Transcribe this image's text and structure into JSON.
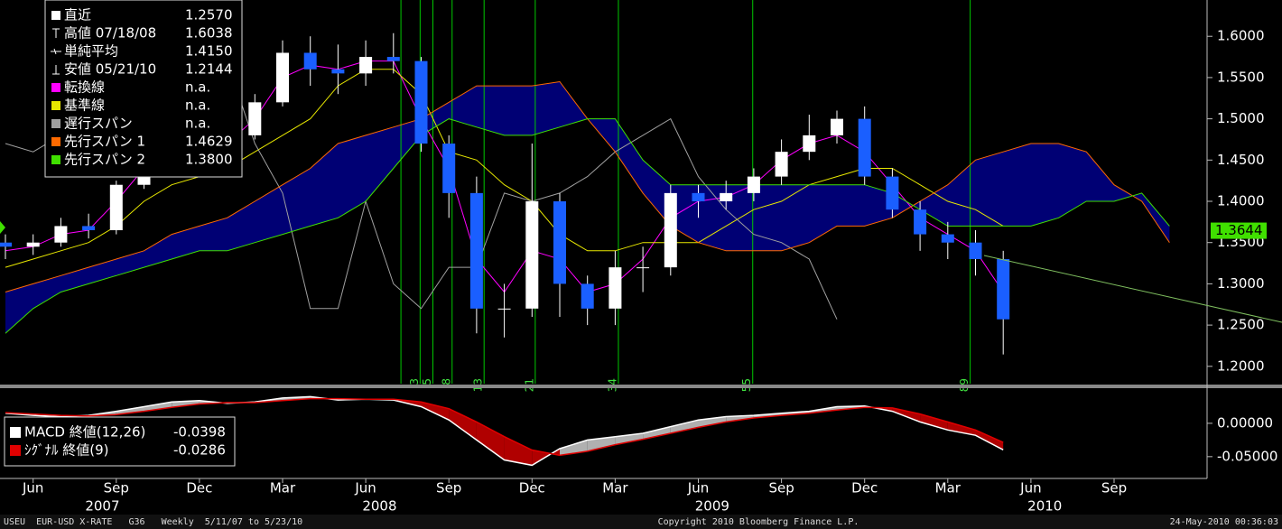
{
  "chart_data": [
    {
      "type": "candlestick",
      "categories": [
        null,
        "Jun",
        null,
        null,
        "Sep",
        null,
        null,
        "Dec",
        null,
        null,
        "Mar",
        null,
        null,
        "Jun",
        null,
        null,
        "Sep",
        null,
        null,
        "Dec",
        null,
        null,
        "Mar",
        null,
        null,
        "Jun",
        null,
        null,
        "Sep",
        null,
        null,
        "Dec",
        null,
        null,
        "Mar",
        null,
        null,
        "Jun",
        null,
        null,
        "Sep",
        null,
        null,
        null
      ],
      "years": [
        "2007",
        "2008",
        "2009",
        "2010"
      ],
      "open": [
        1.35,
        1.345,
        1.35,
        1.37,
        1.365,
        1.42,
        1.45,
        1.47,
        1.46,
        1.48,
        1.52,
        1.58,
        1.56,
        1.555,
        1.575,
        1.57,
        1.47,
        1.41,
        1.27,
        1.27,
        1.4,
        1.3,
        1.27,
        1.32,
        1.32,
        1.41,
        1.4,
        1.41,
        1.43,
        1.46,
        1.48,
        1.5,
        1.43,
        1.39,
        1.36,
        1.35,
        1.33,
        null,
        null,
        null,
        null,
        null,
        null,
        null
      ],
      "high": [
        1.36,
        1.36,
        1.38,
        1.385,
        1.425,
        1.46,
        1.495,
        1.48,
        1.49,
        1.53,
        1.595,
        1.6,
        1.59,
        1.595,
        1.6038,
        1.575,
        1.48,
        1.43,
        1.3,
        1.47,
        1.41,
        1.31,
        1.34,
        1.345,
        1.42,
        1.42,
        1.425,
        1.44,
        1.475,
        1.505,
        1.51,
        1.515,
        1.44,
        1.4,
        1.375,
        1.365,
        1.34,
        null,
        null,
        null,
        null,
        null,
        null,
        null
      ],
      "low": [
        1.33,
        1.335,
        1.345,
        1.355,
        1.36,
        1.415,
        1.44,
        1.44,
        1.445,
        1.475,
        1.515,
        1.54,
        1.53,
        1.54,
        1.555,
        1.46,
        1.38,
        1.24,
        1.235,
        1.26,
        1.26,
        1.25,
        1.25,
        1.29,
        1.31,
        1.38,
        1.39,
        1.4,
        1.42,
        1.45,
        1.47,
        1.42,
        1.38,
        1.34,
        1.33,
        1.31,
        1.2144,
        null,
        null,
        null,
        null,
        null,
        null,
        null
      ],
      "close": [
        1.345,
        1.35,
        1.37,
        1.365,
        1.42,
        1.45,
        1.47,
        1.46,
        1.48,
        1.52,
        1.58,
        1.56,
        1.555,
        1.575,
        1.57,
        1.47,
        1.41,
        1.27,
        1.27,
        1.4,
        1.3,
        1.27,
        1.32,
        1.32,
        1.41,
        1.4,
        1.41,
        1.43,
        1.46,
        1.48,
        1.5,
        1.43,
        1.39,
        1.36,
        1.35,
        1.33,
        1.257,
        null,
        null,
        null,
        null,
        null,
        null,
        null
      ],
      "up_color": "#ffffff",
      "down_color": "#1a5fff",
      "cloud_color": "#00007a",
      "fib_color": "#00c800",
      "stats": [
        {
          "label": "直近",
          "value": {
            "value": 1.257,
            "label": "1.2570"
          }
        },
        {
          "label": "高値 07/18/08",
          "value": 1.6038
        },
        {
          "label": "単純平均",
          "value": {
            "value": 1.415,
            "label": "1.4150"
          }
        },
        {
          "label": "安値 05/21/10",
          "value": 1.2144
        }
      ],
      "series": [
        {
          "name": "転換線",
          "color": "#ff00ff",
          "legend_value": "n.a.",
          "values": [
            1.34,
            1.345,
            1.36,
            1.365,
            1.4,
            1.44,
            1.46,
            1.46,
            1.47,
            1.5,
            1.55,
            1.565,
            1.56,
            1.57,
            1.57,
            1.5,
            1.44,
            1.33,
            1.29,
            1.34,
            1.33,
            1.29,
            1.3,
            1.33,
            1.38,
            1.4,
            1.405,
            1.42,
            1.45,
            1.47,
            1.48,
            1.46,
            1.42,
            1.38,
            1.36,
            1.34,
            1.29,
            null,
            null,
            null,
            null,
            null,
            null,
            null
          ]
        },
        {
          "name": "基準線",
          "color": "#e8e800",
          "legend_value": "n.a.",
          "values": [
            1.32,
            1.33,
            1.34,
            1.35,
            1.37,
            1.4,
            1.42,
            1.43,
            1.44,
            1.46,
            1.48,
            1.5,
            1.54,
            1.56,
            1.56,
            1.53,
            1.46,
            1.45,
            1.42,
            1.4,
            1.36,
            1.34,
            1.34,
            1.35,
            1.35,
            1.35,
            1.37,
            1.39,
            1.4,
            1.42,
            1.43,
            1.44,
            1.44,
            1.42,
            1.4,
            1.39,
            1.37,
            null,
            null,
            null,
            null,
            null,
            null,
            null
          ]
        },
        {
          "name": "遅行スパン",
          "color": "#a0a0a0",
          "legend_value": "n.a.",
          "values": [
            1.47,
            1.46,
            1.48,
            1.52,
            1.58,
            1.56,
            1.555,
            1.575,
            1.57,
            1.47,
            1.41,
            1.27,
            1.27,
            1.4,
            1.3,
            1.27,
            1.32,
            1.32,
            1.41,
            1.4,
            1.41,
            1.43,
            1.46,
            1.48,
            1.5,
            1.43,
            1.39,
            1.36,
            1.35,
            1.33,
            1.257,
            null,
            null,
            null,
            null,
            null,
            null,
            null,
            null,
            null,
            null,
            null,
            null,
            null
          ]
        },
        {
          "name": "先行スパン 1",
          "color": "#ff6a00",
          "legend_value": 1.4629,
          "values": [
            1.29,
            1.3,
            1.31,
            1.32,
            1.33,
            1.34,
            1.36,
            1.37,
            1.38,
            1.4,
            1.42,
            1.44,
            1.47,
            1.48,
            1.49,
            1.5,
            1.52,
            1.54,
            1.54,
            1.54,
            1.545,
            1.5,
            1.46,
            1.41,
            1.37,
            1.35,
            1.34,
            1.34,
            1.34,
            1.35,
            1.37,
            1.37,
            1.38,
            1.4,
            1.42,
            1.45,
            1.46,
            1.47,
            1.47,
            1.46,
            1.42,
            1.4,
            1.35,
            null
          ]
        },
        {
          "name": "先行スパン 2",
          "color": "#40e000",
          "legend_value": {
            "value": 1.38,
            "label": "1.3800"
          },
          "values": [
            1.24,
            1.27,
            1.29,
            1.3,
            1.31,
            1.32,
            1.33,
            1.34,
            1.34,
            1.35,
            1.36,
            1.37,
            1.38,
            1.4,
            1.44,
            1.48,
            1.5,
            1.49,
            1.48,
            1.48,
            1.49,
            1.5,
            1.5,
            1.45,
            1.42,
            1.42,
            1.42,
            1.42,
            1.42,
            1.42,
            1.42,
            1.42,
            1.41,
            1.39,
            1.37,
            1.37,
            1.37,
            1.37,
            1.38,
            1.4,
            1.4,
            1.41,
            1.37,
            null
          ]
        }
      ],
      "fibonacci": [
        3,
        5,
        8,
        13,
        21,
        34,
        55,
        89
      ],
      "last_value": 1.3644,
      "ylim": [
        1.179,
        1.644
      ],
      "yticks": [
        {
          "value": 1.2,
          "label": "1.2000"
        },
        {
          "value": 1.25,
          "label": "1.2500"
        },
        {
          "value": 1.3,
          "label": "1.3000"
        },
        {
          "value": 1.35,
          "label": "1.3500"
        },
        {
          "value": 1.4,
          "label": "1.4000"
        },
        {
          "value": 1.45,
          "label": "1.4500"
        },
        {
          "value": 1.5,
          "label": "1.5000"
        },
        {
          "value": 1.55,
          "label": "1.5500"
        },
        {
          "value": 1.6,
          "label": "1.6000"
        }
      ]
    },
    {
      "type": "line",
      "series": [
        {
          "name": "MACD 終値(12,26)",
          "color": "#ffffff",
          "legend_value": -0.0398,
          "values": [
            0.015,
            0.012,
            0.01,
            0.012,
            0.018,
            0.025,
            0.032,
            0.034,
            0.03,
            0.032,
            0.038,
            0.04,
            0.035,
            0.036,
            0.035,
            0.025,
            0.005,
            -0.025,
            -0.055,
            -0.063,
            -0.038,
            -0.025,
            -0.02,
            -0.015,
            -0.005,
            0.005,
            0.01,
            0.012,
            0.015,
            0.018,
            0.025,
            0.026,
            0.018,
            0.002,
            -0.01,
            -0.018,
            -0.0398,
            null,
            null,
            null,
            null,
            null,
            null,
            null
          ]
        },
        {
          "name": "ｼｸﾞﾅﾙ 終値(9)",
          "color": "#e00000",
          "legend_value": -0.0286,
          "values": [
            0.016,
            0.014,
            0.012,
            0.011,
            0.013,
            0.018,
            0.024,
            0.029,
            0.031,
            0.031,
            0.034,
            0.037,
            0.037,
            0.036,
            0.036,
            0.032,
            0.022,
            0.002,
            -0.02,
            -0.04,
            -0.048,
            -0.042,
            -0.032,
            -0.024,
            -0.015,
            -0.006,
            0.002,
            0.008,
            0.012,
            0.015,
            0.02,
            0.024,
            0.023,
            0.014,
            0.002,
            -0.01,
            -0.0286,
            null,
            null,
            null,
            null,
            null,
            null,
            null
          ]
        }
      ],
      "ylim": [
        -0.08,
        0.05
      ],
      "yticks": [
        {
          "value": 0,
          "label": "0.00000"
        },
        {
          "value": -0.05,
          "label": "-0.05000"
        }
      ]
    }
  ],
  "footer": {
    "left": "USEU  EUR-USD X-RATE   G36   Weekly  5/11/07 to 5/23/10",
    "center": "Copyright 2010 Bloomberg Finance L.P.",
    "right": "24-May-2010 00:36:03"
  }
}
